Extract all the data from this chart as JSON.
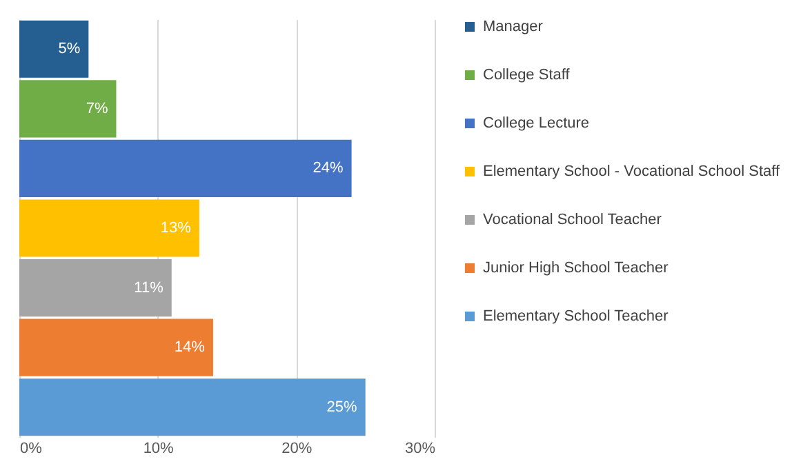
{
  "chart_data": {
    "type": "bar",
    "orientation": "horizontal",
    "categories": [
      null,
      null,
      null,
      null,
      null,
      null,
      null
    ],
    "series": [
      {
        "name": "Manager",
        "color": "#255e91",
        "values": [
          5,
          null,
          null,
          null,
          null,
          null,
          null
        ],
        "value_labels": [
          "5%",
          null,
          null,
          null,
          null,
          null,
          null
        ]
      },
      {
        "name": "College Staff",
        "color": "#70ad47",
        "values": [
          null,
          7,
          null,
          null,
          null,
          null,
          null
        ],
        "value_labels": [
          null,
          "7%",
          null,
          null,
          null,
          null,
          null
        ]
      },
      {
        "name": "College Lecture",
        "color": "#4472c4",
        "values": [
          null,
          null,
          24,
          null,
          null,
          null,
          null
        ],
        "value_labels": [
          null,
          null,
          "24%",
          null,
          null,
          null,
          null
        ]
      },
      {
        "name": "Elementary School - Vocational School Staff",
        "color": "#ffc000",
        "values": [
          null,
          null,
          null,
          13,
          null,
          null,
          null
        ],
        "value_labels": [
          null,
          null,
          null,
          "13%",
          null,
          null,
          null
        ]
      },
      {
        "name": "Vocational School Teacher",
        "color": "#a5a5a5",
        "values": [
          null,
          null,
          null,
          null,
          11,
          null,
          null
        ],
        "value_labels": [
          null,
          null,
          null,
          null,
          "11%",
          null,
          null
        ]
      },
      {
        "name": "Junior High School Teacher",
        "color": "#ed7d31",
        "values": [
          null,
          null,
          null,
          null,
          null,
          14,
          null
        ],
        "value_labels": [
          null,
          null,
          null,
          null,
          null,
          "14%",
          null
        ]
      },
      {
        "name": "Elementary School Teacher",
        "color": "#5b9bd5",
        "values": [
          null,
          null,
          null,
          null,
          null,
          null,
          25
        ],
        "value_labels": [
          null,
          null,
          null,
          null,
          null,
          null,
          "25%"
        ]
      }
    ],
    "xlim": [
      0,
      30
    ],
    "xticks": [
      {
        "value": 0,
        "label": "0%"
      },
      {
        "value": 10,
        "label": "10%"
      },
      {
        "value": 20,
        "label": "20%"
      },
      {
        "value": 30,
        "label": "30%"
      }
    ],
    "grid": "x",
    "legend": "right",
    "tick_labels": "x"
  }
}
